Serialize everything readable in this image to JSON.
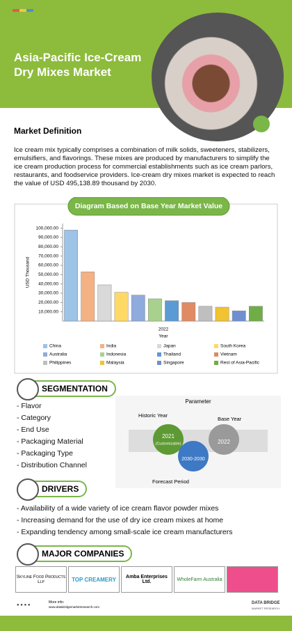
{
  "header": {
    "title": "Asia-Pacific Ice-Cream Dry Mixes Market"
  },
  "definition": {
    "heading": "Market Definition",
    "text": "Ice cream mix typically comprises a combination of milk solids, sweeteners, stabilizers, emulsifiers, and flavorings. These mixes are produced by manufacturers to simplify the ice cream production process for commercial establishments such as ice cream parlors, restaurants, and foodservice providers. Ice-cream dry mixes market is expected to reach the value of USD 495,138.89 thousand by 2030."
  },
  "chart_data": {
    "type": "bar",
    "title": "Diagram Based on Base Year Market Value",
    "x_label": "Year",
    "y_label": "USD Thousand",
    "categories": [
      "2022"
    ],
    "series": [
      {
        "name": "China",
        "color": "#9dc3e6",
        "values": [
          98000
        ]
      },
      {
        "name": "India",
        "color": "#f4b183",
        "values": [
          53000
        ]
      },
      {
        "name": "Japan",
        "color": "#d9d9d9",
        "values": [
          39000
        ]
      },
      {
        "name": "South Korea",
        "color": "#ffd966",
        "values": [
          31000
        ]
      },
      {
        "name": "Australia",
        "color": "#8faadc",
        "values": [
          28000
        ]
      },
      {
        "name": "Indonesia",
        "color": "#a9d18e",
        "values": [
          24000
        ]
      },
      {
        "name": "Thailand",
        "color": "#5b9bd5",
        "values": [
          22000
        ]
      },
      {
        "name": "Vietnam",
        "color": "#e08b62",
        "values": [
          20000
        ]
      },
      {
        "name": "Philippines",
        "color": "#bfbfbf",
        "values": [
          16000
        ]
      },
      {
        "name": "Malaysia",
        "color": "#f1c232",
        "values": [
          15000
        ]
      },
      {
        "name": "Singapore",
        "color": "#6f8fd0",
        "values": [
          11000
        ]
      },
      {
        "name": "Rest of Asia-Pacific",
        "color": "#70ad47",
        "values": [
          16000
        ]
      }
    ],
    "ylim": [
      0,
      105000
    ],
    "yticks": [
      {
        "value": 10000,
        "label": "10,000.00"
      },
      {
        "value": 20000,
        "label": "20,000.00"
      },
      {
        "value": 30000,
        "label": "30,000.00"
      },
      {
        "value": 40000,
        "label": "40,000.00"
      },
      {
        "value": 50000,
        "label": "50,000.00"
      },
      {
        "value": 60000,
        "label": "60,000.00"
      },
      {
        "value": 70000,
        "label": "70,000.00"
      },
      {
        "value": 80000,
        "label": "80,000.00"
      },
      {
        "value": 90000,
        "label": "90,000.00"
      },
      {
        "value": 100000,
        "label": "100,000.00"
      }
    ]
  },
  "segmentation": {
    "heading": "SEGMENTATION",
    "items": [
      "Flavor",
      "Category",
      "End Use",
      "Packaging Material",
      "Packaging Type",
      "Distribution Channel"
    ]
  },
  "parameter": {
    "title": "Parameter",
    "historic_label": "Historic Year",
    "historic_year": "2021",
    "historic_note": "(Customizable)",
    "base_label": "Base Year",
    "base_year": "2022",
    "forecast_years": "2030-2030",
    "forecast_label": "Forecast Period"
  },
  "drivers": {
    "heading": "DRIVERS",
    "items": [
      "Availability of a wide variety of ice cream flavor powder mixes",
      "Increasing demand for the use of dry ice cream mixes at home",
      "Expanding tendency among small-scale ice cream manufacturers"
    ]
  },
  "companies": {
    "heading": "MAJOR COMPANIES",
    "logos": [
      "Skyline Food Products Llp",
      "TOP CREAMERY",
      "Amba Enterprises Ltd.",
      "WholeFarm Australia"
    ]
  },
  "footer": {
    "info_label": "More info:",
    "url": "www.databridgemarketresearch.com",
    "brand": "DATA BRIDGE",
    "brand_sub": "MARKET RESEARCH"
  }
}
